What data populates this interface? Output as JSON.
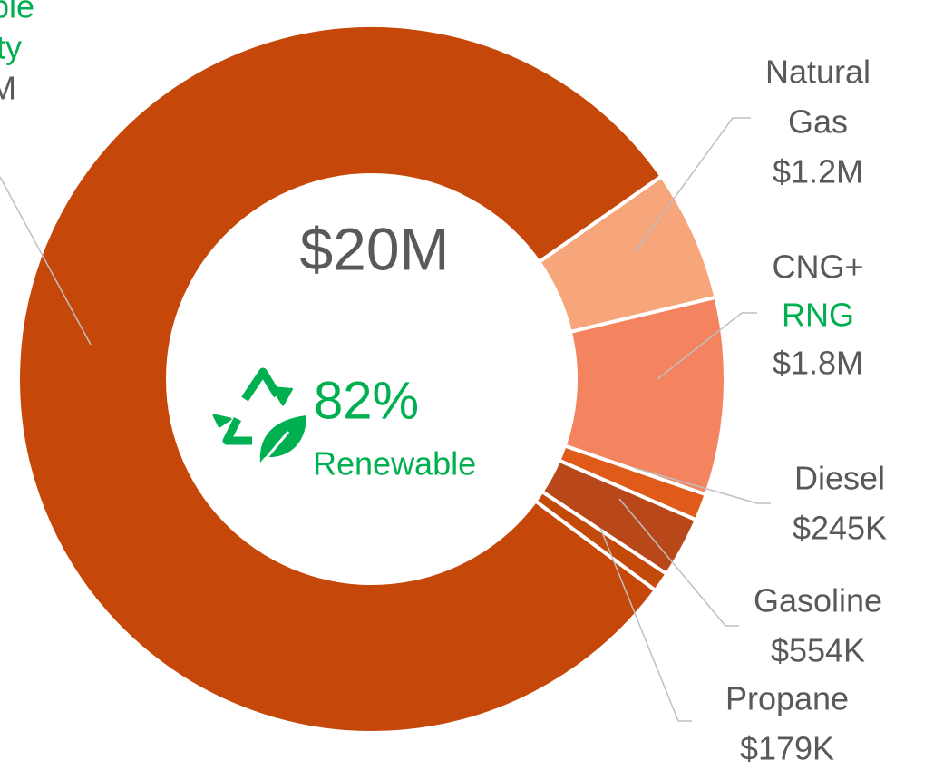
{
  "chart_data": {
    "type": "donut",
    "categories": [
      [
        "Natural",
        "Gas"
      ],
      [
        "CNG+",
        "RNG"
      ],
      [
        "Diesel"
      ],
      [
        "Gasoline"
      ],
      [
        "Propane"
      ],
      [
        "able",
        "city"
      ]
    ],
    "category_colors": [
      [
        "#595959",
        "#595959"
      ],
      [
        "#595959",
        "#00b050"
      ],
      [
        "#595959"
      ],
      [
        "#595959"
      ],
      [
        "#595959"
      ],
      [
        "#00b050",
        "#00b050"
      ]
    ],
    "values": [
      1200000,
      1800000,
      245000,
      554000,
      179000,
      16000000
    ],
    "value_labels": [
      "$1.2M",
      "$1.8M",
      "$245K",
      "$554K",
      "$179K",
      "M"
    ],
    "colors": [
      "#f7a57b",
      "#f4845f",
      "#e05a1a",
      "#b8471a",
      "#c44a0c",
      "#c5470a"
    ],
    "total": 20000000,
    "total_label": "$20M",
    "renewable_share": 82,
    "renewable_label": "82%",
    "renewable_caption": "Renewable"
  }
}
